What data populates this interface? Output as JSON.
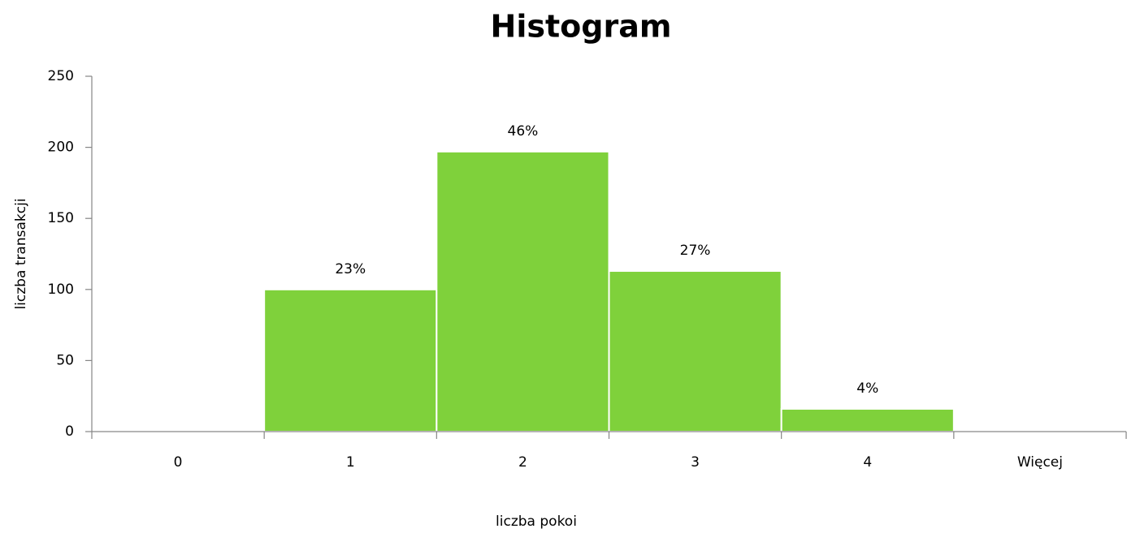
{
  "chart_data": {
    "type": "bar",
    "title": "Histogram",
    "x_label": "liczba pokoi",
    "y_label": "liczba transakcji",
    "categories": [
      "0",
      "1",
      "2",
      "3",
      "4",
      "Więcej"
    ],
    "values": [
      0,
      100,
      197,
      113,
      16,
      0
    ],
    "percent_labels": [
      null,
      "23%",
      "46%",
      "27%",
      "4%",
      null
    ],
    "color": "#7fd13b",
    "ylim": [
      0,
      250
    ],
    "yticks": [
      0,
      50,
      100,
      150,
      200,
      250
    ],
    "grid": false
  }
}
